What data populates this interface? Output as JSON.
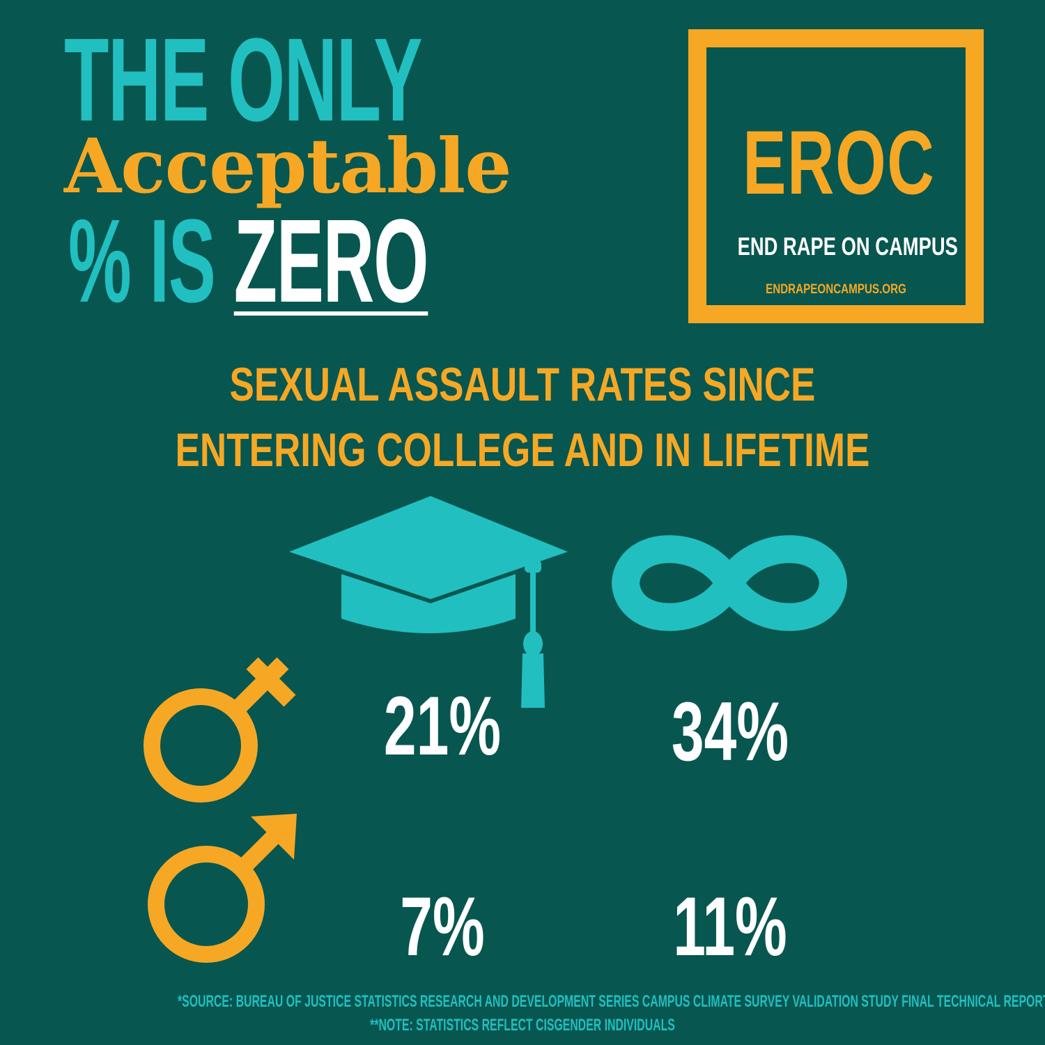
{
  "headline": {
    "line1": "THE ONLY",
    "line2": "Acceptable",
    "line3_prefix": "% IS ",
    "line3_emphasis": "ZERO"
  },
  "logo": {
    "acronym": "EROC",
    "name": "END RAPE ON CAMPUS",
    "url": "ENDRAPEONCAMPUS.ORG"
  },
  "subtitle": {
    "line1": "SEXUAL ASSAULT RATES SINCE",
    "line2": "ENTERING COLLEGE AND IN LIFETIME"
  },
  "icons": {
    "column_college": "graduation-cap-icon",
    "column_lifetime": "infinity-icon",
    "row_female": "female-symbol-icon",
    "row_male": "male-symbol-icon"
  },
  "stats": {
    "female": {
      "college": "21%",
      "lifetime": "34%"
    },
    "male": {
      "college": "7%",
      "lifetime": "11%"
    }
  },
  "footer": {
    "source": "*SOURCE: BUREAU OF JUSTICE STATISTICS RESEARCH AND DEVELOPMENT SERIES CAMPUS CLIMATE SURVEY VALIDATION STUDY FINAL TECHNICAL REPORT",
    "note": "**NOTE: STATISTICS REFLECT CISGENDER INDIVIDUALS"
  },
  "colors": {
    "background": "#085650",
    "teal": "#21bfc0",
    "orange": "#f6a824",
    "white": "#ffffff"
  }
}
